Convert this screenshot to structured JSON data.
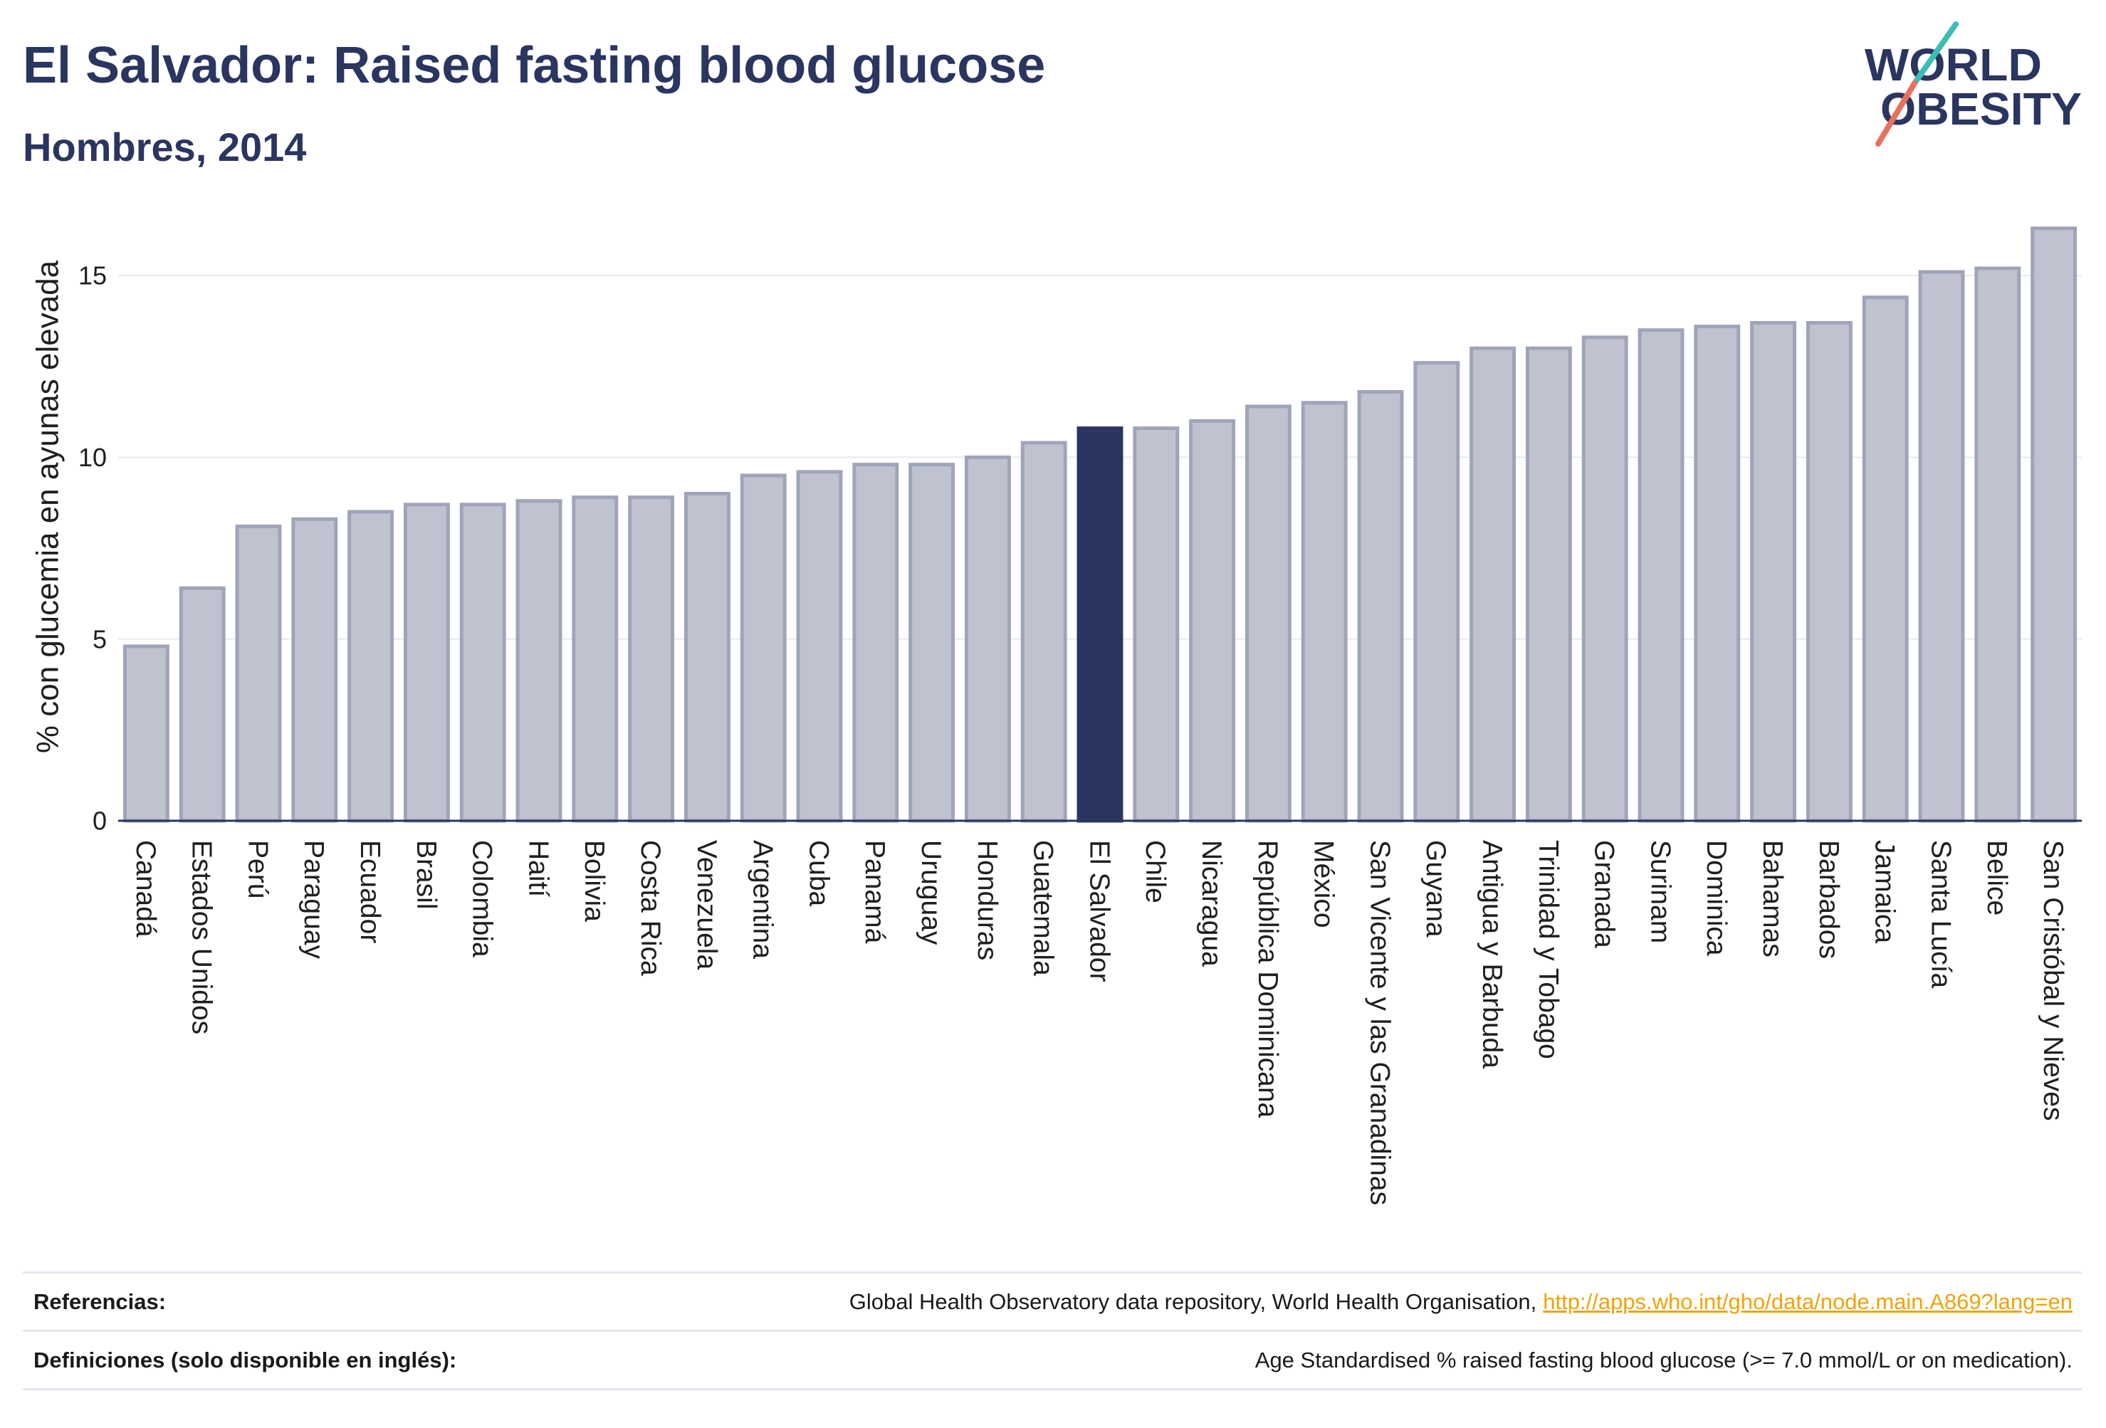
{
  "chart_data": {
    "type": "bar",
    "title": "El Salvador: Raised fasting blood glucose",
    "subtitle": "Hombres, 2014",
    "ylabel": "% con glucemia en ayunas elevada",
    "categories": [
      "Canadá",
      "Estados Unidos",
      "Perú",
      "Paraguay",
      "Ecuador",
      "Brasil",
      "Colombia",
      "Haití",
      "Bolivia",
      "Costa Rica",
      "Venezuela",
      "Argentina",
      "Cuba",
      "Panamá",
      "Uruguay",
      "Honduras",
      "Guatemala",
      "El Salvador",
      "Chile",
      "Nicaragua",
      "República Dominicana",
      "México",
      "San Vicente y las Granadinas",
      "Guyana",
      "Antigua y Barbuda",
      "Trinidad y Tobago",
      "Granada",
      "Surinam",
      "Dominica",
      "Bahamas",
      "Barbados",
      "Jamaica",
      "Santa Lucía",
      "Belice",
      "San Cristóbal y Nieves"
    ],
    "values": [
      4.8,
      6.4,
      8.1,
      8.3,
      8.5,
      8.7,
      8.7,
      8.8,
      8.9,
      8.9,
      9.0,
      9.5,
      9.6,
      9.8,
      9.8,
      10.0,
      10.4,
      10.8,
      10.8,
      11.0,
      11.4,
      11.5,
      11.8,
      12.6,
      13.0,
      13.0,
      13.3,
      13.5,
      13.6,
      13.7,
      13.7,
      14.4,
      15.1,
      15.2,
      16.3
    ],
    "highlight_index": 17,
    "ylim": [
      0,
      17
    ],
    "yticks": [
      0,
      5,
      10,
      15
    ],
    "grid": true,
    "legend": "none",
    "colors": {
      "bar": "#bfc2cf",
      "bar_border": "#9fa4b8",
      "highlight": "#2a3560",
      "axis": "#2a3560",
      "grid": "#e8e9ef"
    }
  },
  "logo": {
    "line1": "WORLD",
    "line2": "OBESITY",
    "text_color": "#2a3560",
    "accent_top": "#3dbdb4",
    "accent_bottom": "#e8705f"
  },
  "footer": {
    "references_label": "Referencias:",
    "references_text": "Global Health Observatory data repository, World Health Organisation,",
    "references_link": "http://apps.who.int/gho/data/node.main.A869?lang=en",
    "definitions_label": "Definiciones (solo disponible en inglés):",
    "definitions_text": "Age Standardised % raised fasting blood glucose (>= 7.0 mmol/L or on medication)."
  }
}
